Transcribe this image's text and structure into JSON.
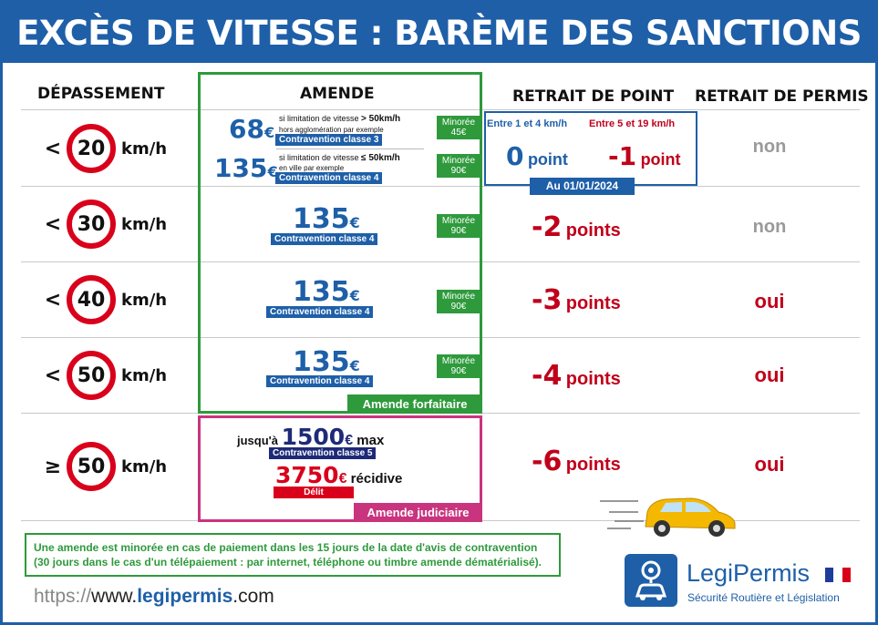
{
  "title": "EXCÈS DE VITESSE : BARÈME DES SANCTIONS",
  "headers": {
    "depassement": "DÉPASSEMENT",
    "amende": "AMENDE",
    "retrait_point": "RETRAIT DE POINT",
    "retrait_permis": "RETRAIT DE PERMIS"
  },
  "rows": [
    {
      "prefix": "<",
      "speed": "20",
      "unit": "km/h",
      "permis": "non"
    },
    {
      "prefix": "<",
      "speed": "30",
      "unit": "km/h",
      "permis": "non",
      "price": "135",
      "currency": "€",
      "classe": "Contravention classe 4",
      "minoree_label": "Minorée",
      "minoree_value": "90€",
      "points_n": "-2",
      "points_w": "points"
    },
    {
      "prefix": "<",
      "speed": "40",
      "unit": "km/h",
      "permis": "oui",
      "price": "135",
      "currency": "€",
      "classe": "Contravention classe 4",
      "minoree_label": "Minorée",
      "minoree_value": "90€",
      "points_n": "-3",
      "points_w": "points"
    },
    {
      "prefix": "<",
      "speed": "50",
      "unit": "km/h",
      "permis": "oui",
      "price": "135",
      "currency": "€",
      "classe": "Contravention classe 4",
      "minoree_label": "Minorée",
      "minoree_value": "90€",
      "points_n": "-4",
      "points_w": "points"
    },
    {
      "prefix": "≥",
      "speed": "50",
      "unit": "km/h",
      "permis": "oui",
      "points_n": "-6",
      "points_w": "points"
    }
  ],
  "row1": {
    "a_price": "68",
    "a_currency": "€",
    "a_line1_pre": "si limitation de vitesse ",
    "a_line1_bold": "> 50km/h",
    "a_line2": "hors agglomération par exemple",
    "a_classe": "Contravention classe 3",
    "a_minoree_label": "Minorée",
    "a_minoree_value": "45€",
    "b_price": "135",
    "b_currency": "€",
    "b_line1_pre": "si limitation de vitesse ",
    "b_line1_bold": "≤ 50km/h",
    "b_line2": "en ville par exemple",
    "b_classe": "Contravention classe 4",
    "b_minoree_label": "Minorée",
    "b_minoree_value": "90€",
    "range1": "Entre 1 et 4 km/h",
    "range2": "Entre 5 et 19 km/h",
    "pts1_n": "0",
    "pts1_w": "point",
    "pts2_n": "-1",
    "pts2_w": "point",
    "date_label": "Au 01/01/2024"
  },
  "amende_forfaitaire": "Amende forfaitaire",
  "judiciaire": {
    "pre": "jusqu'à ",
    "amount": "1500",
    "currency": "€",
    "post": " max",
    "classe": "Contravention classe 5",
    "recidive_amount": "3750",
    "recidive_currency": "€",
    "recidive_label": " récidive",
    "delit": "Délit",
    "tag": "Amende judiciaire"
  },
  "note": {
    "line1": "Une amende est minorée en cas de paiement dans les 15 jours de la date d'avis de contravention",
    "line2": "(30 jours dans le cas d'un télépaiement : par internet, téléphone ou timbre amende dématérialisé)."
  },
  "url": {
    "prefix": "https://",
    "www": "www.",
    "domain": "legipermis",
    "tld": ".com"
  },
  "brand": {
    "name": "LegiPermis",
    "tagline": "Sécurité Routière et Législation"
  },
  "colors": {
    "blue": "#1e5fa8",
    "green": "#2e9a3c",
    "pink": "#c9347e",
    "red": "#c0001a",
    "sign_red": "#d9001b"
  }
}
